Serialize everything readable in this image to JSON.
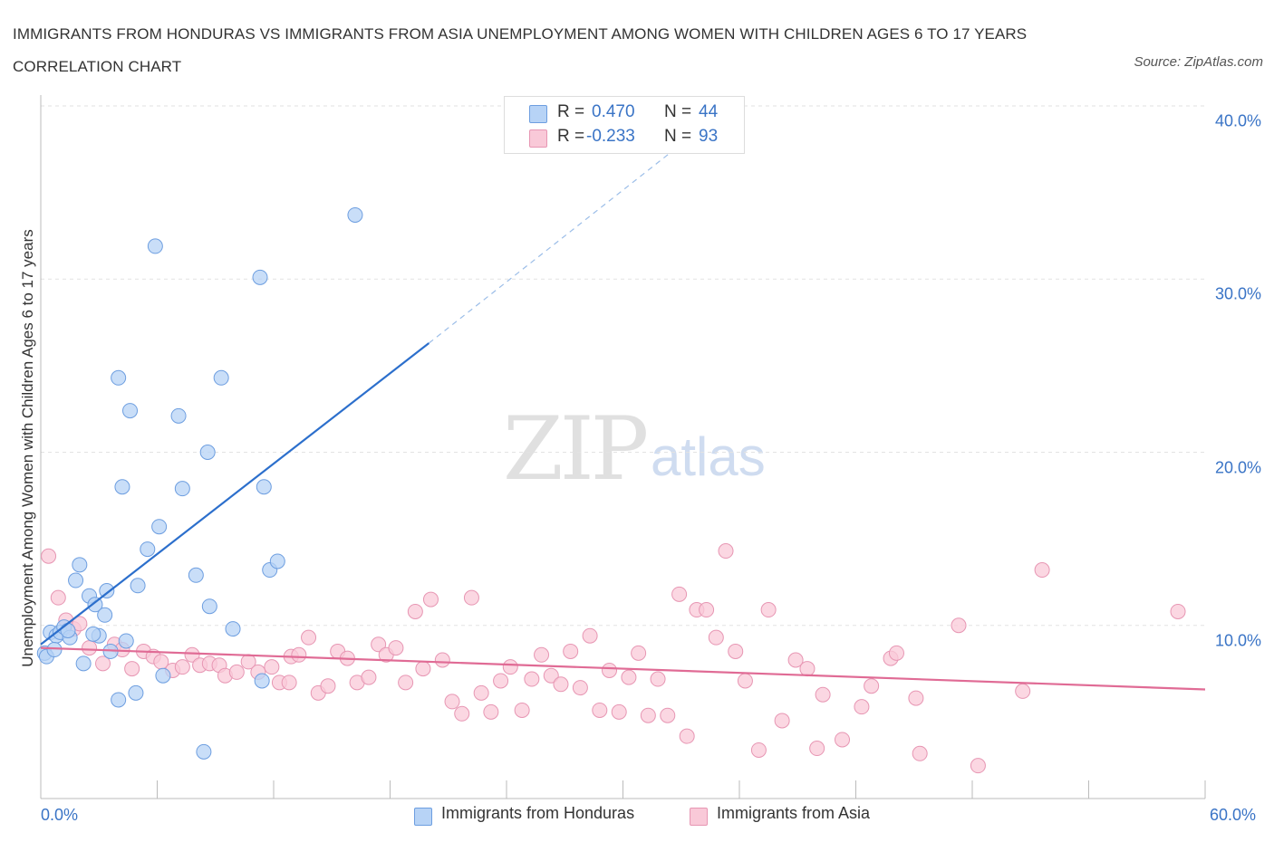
{
  "title": "IMMIGRANTS FROM HONDURAS VS IMMIGRANTS FROM ASIA UNEMPLOYMENT AMONG WOMEN WITH CHILDREN AGES 6 TO 17 YEARS CORRELATION CHART",
  "source": "Source: ZipAtlas.com",
  "watermark": {
    "zip": "ZIP",
    "atlas": "atlas"
  },
  "legend_box": {
    "rows": [
      {
        "r_label": "R =",
        "r_value": "0.470",
        "n_label": "N =",
        "n_value": "44",
        "color": "#b7d3f6",
        "border": "#6d9ee0"
      },
      {
        "r_label": "R =",
        "r_value": "-0.233",
        "n_label": "N =",
        "n_value": "93",
        "color": "#f9c9d8",
        "border": "#e796b3"
      }
    ]
  },
  "bottom_legend": {
    "honduras": "Immigrants from Honduras",
    "asia": "Immigrants from Asia"
  },
  "colors": {
    "honduras_fill": "#b7d3f6",
    "honduras_stroke": "#6d9ee0",
    "honduras_line": "#2c6fcc",
    "asia_fill": "#f9c9d8",
    "asia_stroke": "#e796b3",
    "asia_line": "#e06b95",
    "tick_text": "#3a74c6",
    "grid": "#e2e2e2"
  },
  "chart_data": {
    "type": "scatter",
    "title": "IMMIGRANTS FROM HONDURAS VS IMMIGRANTS FROM ASIA UNEMPLOYMENT AMONG WOMEN WITH CHILDREN AGES 6 TO 17 YEARS CORRELATION CHART",
    "xlabel": "",
    "ylabel": "Unemployment Among Women with Children Ages 6 to 17 years",
    "xlim": [
      0,
      60
    ],
    "ylim": [
      0,
      40
    ],
    "x_tick_labels": [
      "0.0%",
      "60.0%"
    ],
    "y_ticks": [
      10,
      20,
      30,
      40
    ],
    "y_tick_labels": [
      "10.0%",
      "20.0%",
      "30.0%",
      "40.0%"
    ],
    "grid": true,
    "legend": "top-center",
    "series": [
      {
        "name": "Immigrants from Honduras",
        "r": 0.47,
        "n": 44,
        "trend": {
          "x0": 0,
          "y0": 8.9,
          "x1": 20,
          "y1": 26.3,
          "dashed_to_x": 35.5,
          "dashed_to_y": 40.0
        },
        "points": [
          [
            0.2,
            8.4
          ],
          [
            0.3,
            8.2
          ],
          [
            0.5,
            9.6
          ],
          [
            0.8,
            9.4
          ],
          [
            1.0,
            9.6
          ],
          [
            1.2,
            9.9
          ],
          [
            1.5,
            9.3
          ],
          [
            1.8,
            12.6
          ],
          [
            2.0,
            13.5
          ],
          [
            2.2,
            7.8
          ],
          [
            2.5,
            11.7
          ],
          [
            2.8,
            11.2
          ],
          [
            3.0,
            9.4
          ],
          [
            3.3,
            10.6
          ],
          [
            3.4,
            12.0
          ],
          [
            3.6,
            8.5
          ],
          [
            4.0,
            24.3
          ],
          [
            4.0,
            5.7
          ],
          [
            4.2,
            18.0
          ],
          [
            4.4,
            9.1
          ],
          [
            4.6,
            22.4
          ],
          [
            4.9,
            6.1
          ],
          [
            5.0,
            12.3
          ],
          [
            5.5,
            14.4
          ],
          [
            5.9,
            31.9
          ],
          [
            6.1,
            15.7
          ],
          [
            6.3,
            7.1
          ],
          [
            7.1,
            22.1
          ],
          [
            7.3,
            17.9
          ],
          [
            8.0,
            12.9
          ],
          [
            8.4,
            2.7
          ],
          [
            8.6,
            20.0
          ],
          [
            8.7,
            11.1
          ],
          [
            9.3,
            24.3
          ],
          [
            9.9,
            9.8
          ],
          [
            11.3,
            30.1
          ],
          [
            11.4,
            6.8
          ],
          [
            11.5,
            18.0
          ],
          [
            11.8,
            13.2
          ],
          [
            12.2,
            13.7
          ],
          [
            16.2,
            33.7
          ],
          [
            0.7,
            8.6
          ],
          [
            1.4,
            9.7
          ],
          [
            2.7,
            9.5
          ]
        ]
      },
      {
        "name": "Immigrants from Asia",
        "r": -0.233,
        "n": 93,
        "trend": {
          "x0": 0,
          "y0": 8.7,
          "x1": 60,
          "y1": 6.3
        },
        "points": [
          [
            0.4,
            14.0
          ],
          [
            0.9,
            11.6
          ],
          [
            1.3,
            10.3
          ],
          [
            1.7,
            9.8
          ],
          [
            2.0,
            10.1
          ],
          [
            2.5,
            8.7
          ],
          [
            3.2,
            7.8
          ],
          [
            3.8,
            8.9
          ],
          [
            4.2,
            8.6
          ],
          [
            4.7,
            7.5
          ],
          [
            5.3,
            8.5
          ],
          [
            5.8,
            8.2
          ],
          [
            6.2,
            7.9
          ],
          [
            6.8,
            7.4
          ],
          [
            7.3,
            7.6
          ],
          [
            7.8,
            8.3
          ],
          [
            8.2,
            7.7
          ],
          [
            8.7,
            7.8
          ],
          [
            9.2,
            7.7
          ],
          [
            9.5,
            7.1
          ],
          [
            10.1,
            7.3
          ],
          [
            10.7,
            7.9
          ],
          [
            11.2,
            7.3
          ],
          [
            11.9,
            7.6
          ],
          [
            12.3,
            6.7
          ],
          [
            12.9,
            8.2
          ],
          [
            13.3,
            8.3
          ],
          [
            13.8,
            9.3
          ],
          [
            14.3,
            6.1
          ],
          [
            14.8,
            6.5
          ],
          [
            15.3,
            8.5
          ],
          [
            15.8,
            8.1
          ],
          [
            16.3,
            6.7
          ],
          [
            16.9,
            7.0
          ],
          [
            17.4,
            8.9
          ],
          [
            17.8,
            8.3
          ],
          [
            18.3,
            8.7
          ],
          [
            18.8,
            6.7
          ],
          [
            19.3,
            10.8
          ],
          [
            19.7,
            7.5
          ],
          [
            20.1,
            11.5
          ],
          [
            20.7,
            8.0
          ],
          [
            21.2,
            5.6
          ],
          [
            21.7,
            4.9
          ],
          [
            22.2,
            11.6
          ],
          [
            22.7,
            6.1
          ],
          [
            23.2,
            5.0
          ],
          [
            23.7,
            6.8
          ],
          [
            24.2,
            7.6
          ],
          [
            24.8,
            5.1
          ],
          [
            25.3,
            6.9
          ],
          [
            25.8,
            8.3
          ],
          [
            26.3,
            7.1
          ],
          [
            26.8,
            6.6
          ],
          [
            27.3,
            8.5
          ],
          [
            27.8,
            6.4
          ],
          [
            28.3,
            9.4
          ],
          [
            28.8,
            5.1
          ],
          [
            29.3,
            7.4
          ],
          [
            29.8,
            5.0
          ],
          [
            30.3,
            7.0
          ],
          [
            30.8,
            8.4
          ],
          [
            31.3,
            4.8
          ],
          [
            31.8,
            6.9
          ],
          [
            32.3,
            4.8
          ],
          [
            32.9,
            11.8
          ],
          [
            33.3,
            3.6
          ],
          [
            33.8,
            10.9
          ],
          [
            34.3,
            10.9
          ],
          [
            34.8,
            9.3
          ],
          [
            35.3,
            14.3
          ],
          [
            35.8,
            8.5
          ],
          [
            36.3,
            6.8
          ],
          [
            37.0,
            2.8
          ],
          [
            37.5,
            10.9
          ],
          [
            38.2,
            4.5
          ],
          [
            38.9,
            8.0
          ],
          [
            39.5,
            7.5
          ],
          [
            40.0,
            2.9
          ],
          [
            40.3,
            6.0
          ],
          [
            41.3,
            3.4
          ],
          [
            42.3,
            5.3
          ],
          [
            42.8,
            6.5
          ],
          [
            43.8,
            8.1
          ],
          [
            44.1,
            8.4
          ],
          [
            45.1,
            5.8
          ],
          [
            45.3,
            2.6
          ],
          [
            47.3,
            10.0
          ],
          [
            48.3,
            1.9
          ],
          [
            50.6,
            6.2
          ],
          [
            51.6,
            13.2
          ],
          [
            58.6,
            10.8
          ],
          [
            12.8,
            6.7
          ]
        ]
      }
    ]
  }
}
